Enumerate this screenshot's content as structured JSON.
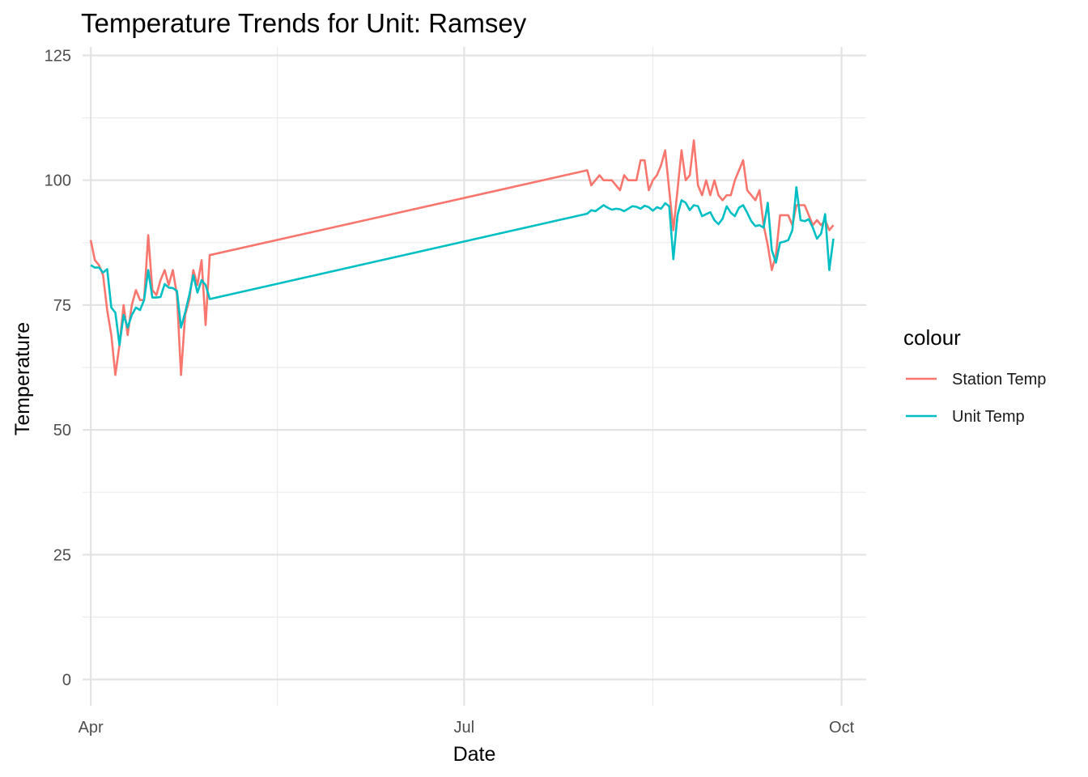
{
  "chart_data": {
    "type": "line",
    "title": "Temperature Trends for Unit: Ramsey",
    "xlabel": "Date",
    "ylabel": "Temperature",
    "ylim": [
      0,
      125
    ],
    "yticks": [
      0,
      25,
      50,
      75,
      100,
      125
    ],
    "xlim": [
      "2023-03-30",
      "2023-10-07"
    ],
    "xticks": [
      {
        "date": "2023-04-01",
        "label": "Apr"
      },
      {
        "date": "2023-07-01",
        "label": "Jul"
      },
      {
        "date": "2023-10-01",
        "label": "Oct"
      }
    ],
    "grid": true,
    "legend": {
      "title": "colour",
      "position": "right",
      "items": [
        {
          "label": "Station Temp",
          "color": "#F8766D"
        },
        {
          "label": "Unit Temp",
          "color": "#00BFC4"
        }
      ]
    },
    "series": [
      {
        "name": "Station Temp",
        "color": "#F8766D",
        "points": [
          [
            "2023-04-01",
            88
          ],
          [
            "2023-04-02",
            84
          ],
          [
            "2023-04-03",
            83
          ],
          [
            "2023-04-04",
            81
          ],
          [
            "2023-04-05",
            74
          ],
          [
            "2023-04-06",
            69
          ],
          [
            "2023-04-07",
            61
          ],
          [
            "2023-04-08",
            67
          ],
          [
            "2023-04-09",
            75
          ],
          [
            "2023-04-10",
            69
          ],
          [
            "2023-04-11",
            75
          ],
          [
            "2023-04-12",
            78
          ],
          [
            "2023-04-13",
            76
          ],
          [
            "2023-04-14",
            76
          ],
          [
            "2023-04-15",
            89
          ],
          [
            "2023-04-16",
            78
          ],
          [
            "2023-04-17",
            77
          ],
          [
            "2023-04-18",
            80
          ],
          [
            "2023-04-19",
            82
          ],
          [
            "2023-04-20",
            79
          ],
          [
            "2023-04-21",
            82
          ],
          [
            "2023-04-22",
            77
          ],
          [
            "2023-04-23",
            61
          ],
          [
            "2023-04-24",
            73
          ],
          [
            "2023-04-25",
            76
          ],
          [
            "2023-04-26",
            82
          ],
          [
            "2023-04-27",
            79
          ],
          [
            "2023-04-28",
            84
          ],
          [
            "2023-04-29",
            71
          ],
          [
            "2023-04-30",
            85
          ],
          [
            "2023-07-31",
            102
          ],
          [
            "2023-08-01",
            99
          ],
          [
            "2023-08-02",
            100
          ],
          [
            "2023-08-03",
            101
          ],
          [
            "2023-08-04",
            100
          ],
          [
            "2023-08-05",
            100
          ],
          [
            "2023-08-06",
            100
          ],
          [
            "2023-08-07",
            99
          ],
          [
            "2023-08-08",
            98
          ],
          [
            "2023-08-09",
            101
          ],
          [
            "2023-08-10",
            100
          ],
          [
            "2023-08-11",
            100
          ],
          [
            "2023-08-12",
            100
          ],
          [
            "2023-08-13",
            104
          ],
          [
            "2023-08-14",
            104
          ],
          [
            "2023-08-15",
            98
          ],
          [
            "2023-08-16",
            100
          ],
          [
            "2023-08-17",
            101
          ],
          [
            "2023-08-18",
            103
          ],
          [
            "2023-08-19",
            106
          ],
          [
            "2023-08-20",
            98
          ],
          [
            "2023-08-21",
            90
          ],
          [
            "2023-08-22",
            98
          ],
          [
            "2023-08-23",
            106
          ],
          [
            "2023-08-24",
            100
          ],
          [
            "2023-08-25",
            101
          ],
          [
            "2023-08-26",
            108
          ],
          [
            "2023-08-27",
            99
          ],
          [
            "2023-08-28",
            97
          ],
          [
            "2023-08-29",
            100
          ],
          [
            "2023-08-30",
            97
          ],
          [
            "2023-08-31",
            100
          ],
          [
            "2023-09-01",
            97
          ],
          [
            "2023-09-02",
            96
          ],
          [
            "2023-09-03",
            97
          ],
          [
            "2023-09-04",
            97
          ],
          [
            "2023-09-05",
            100
          ],
          [
            "2023-09-06",
            102
          ],
          [
            "2023-09-07",
            104
          ],
          [
            "2023-09-08",
            98
          ],
          [
            "2023-09-09",
            97
          ],
          [
            "2023-09-10",
            96
          ],
          [
            "2023-09-11",
            98
          ],
          [
            "2023-09-12",
            91
          ],
          [
            "2023-09-13",
            87
          ],
          [
            "2023-09-14",
            82
          ],
          [
            "2023-09-15",
            85
          ],
          [
            "2023-09-16",
            93
          ],
          [
            "2023-09-17",
            93
          ],
          [
            "2023-09-18",
            93
          ],
          [
            "2023-09-19",
            91
          ],
          [
            "2023-09-20",
            95
          ],
          [
            "2023-09-21",
            95
          ],
          [
            "2023-09-22",
            95
          ],
          [
            "2023-09-23",
            93
          ],
          [
            "2023-09-24",
            91
          ],
          [
            "2023-09-25",
            92
          ],
          [
            "2023-09-26",
            91
          ],
          [
            "2023-09-27",
            92
          ],
          [
            "2023-09-28",
            90
          ],
          [
            "2023-09-29",
            91
          ]
        ]
      },
      {
        "name": "Unit Temp",
        "color": "#00BFC4",
        "points": [
          [
            "2023-04-01",
            83
          ],
          [
            "2023-04-02",
            82.5
          ],
          [
            "2023-04-03",
            82.5
          ],
          [
            "2023-04-04",
            81.5
          ],
          [
            "2023-04-05",
            82.2
          ],
          [
            "2023-04-06",
            74.5
          ],
          [
            "2023-04-07",
            73.5
          ],
          [
            "2023-04-08",
            67
          ],
          [
            "2023-04-09",
            73
          ],
          [
            "2023-04-10",
            70.5
          ],
          [
            "2023-04-11",
            73
          ],
          [
            "2023-04-12",
            74.5
          ],
          [
            "2023-04-13",
            74
          ],
          [
            "2023-04-14",
            76
          ],
          [
            "2023-04-15",
            82
          ],
          [
            "2023-04-16",
            76.5
          ],
          [
            "2023-04-17",
            76.5
          ],
          [
            "2023-04-18",
            76.6
          ],
          [
            "2023-04-19",
            79.2
          ],
          [
            "2023-04-20",
            78.5
          ],
          [
            "2023-04-21",
            78.4
          ],
          [
            "2023-04-22",
            77.8
          ],
          [
            "2023-04-23",
            70.5
          ],
          [
            "2023-04-24",
            73.5
          ],
          [
            "2023-04-25",
            77
          ],
          [
            "2023-04-26",
            81
          ],
          [
            "2023-04-27",
            77.5
          ],
          [
            "2023-04-28",
            80
          ],
          [
            "2023-04-29",
            79
          ],
          [
            "2023-04-30",
            76.2
          ],
          [
            "2023-07-31",
            93.3
          ],
          [
            "2023-08-01",
            94
          ],
          [
            "2023-08-02",
            93.8
          ],
          [
            "2023-08-03",
            94.4
          ],
          [
            "2023-08-04",
            95
          ],
          [
            "2023-08-05",
            94.5
          ],
          [
            "2023-08-06",
            94.1
          ],
          [
            "2023-08-07",
            94.3
          ],
          [
            "2023-08-08",
            94.2
          ],
          [
            "2023-08-09",
            93.8
          ],
          [
            "2023-08-10",
            94.3
          ],
          [
            "2023-08-11",
            94.8
          ],
          [
            "2023-08-12",
            94.7
          ],
          [
            "2023-08-13",
            94.3
          ],
          [
            "2023-08-14",
            94.9
          ],
          [
            "2023-08-15",
            94.6
          ],
          [
            "2023-08-16",
            93.9
          ],
          [
            "2023-08-17",
            94.6
          ],
          [
            "2023-08-18",
            94.3
          ],
          [
            "2023-08-19",
            95.4
          ],
          [
            "2023-08-20",
            94.8
          ],
          [
            "2023-08-21",
            84.2
          ],
          [
            "2023-08-22",
            93
          ],
          [
            "2023-08-23",
            96
          ],
          [
            "2023-08-24",
            95.5
          ],
          [
            "2023-08-25",
            94
          ],
          [
            "2023-08-26",
            95
          ],
          [
            "2023-08-27",
            94.8
          ],
          [
            "2023-08-28",
            92.8
          ],
          [
            "2023-08-29",
            93.2
          ],
          [
            "2023-08-30",
            93.6
          ],
          [
            "2023-08-31",
            92
          ],
          [
            "2023-09-01",
            91.2
          ],
          [
            "2023-09-02",
            92.3
          ],
          [
            "2023-09-03",
            94.8
          ],
          [
            "2023-09-04",
            93.5
          ],
          [
            "2023-09-05",
            92.8
          ],
          [
            "2023-09-06",
            94.5
          ],
          [
            "2023-09-07",
            95
          ],
          [
            "2023-09-08",
            93.5
          ],
          [
            "2023-09-09",
            91.8
          ],
          [
            "2023-09-10",
            90.8
          ],
          [
            "2023-09-11",
            91
          ],
          [
            "2023-09-12",
            90.5
          ],
          [
            "2023-09-13",
            95.5
          ],
          [
            "2023-09-14",
            86
          ],
          [
            "2023-09-15",
            83.5
          ],
          [
            "2023-09-16",
            87.5
          ],
          [
            "2023-09-17",
            87.7
          ],
          [
            "2023-09-18",
            88
          ],
          [
            "2023-09-19",
            90
          ],
          [
            "2023-09-20",
            98.6
          ],
          [
            "2023-09-21",
            92
          ],
          [
            "2023-09-22",
            91.8
          ],
          [
            "2023-09-23",
            92.2
          ],
          [
            "2023-09-24",
            90.5
          ],
          [
            "2023-09-25",
            88.3
          ],
          [
            "2023-09-26",
            89.3
          ],
          [
            "2023-09-27",
            93.2
          ],
          [
            "2023-09-28",
            82
          ],
          [
            "2023-09-29",
            88.3
          ]
        ]
      }
    ]
  }
}
